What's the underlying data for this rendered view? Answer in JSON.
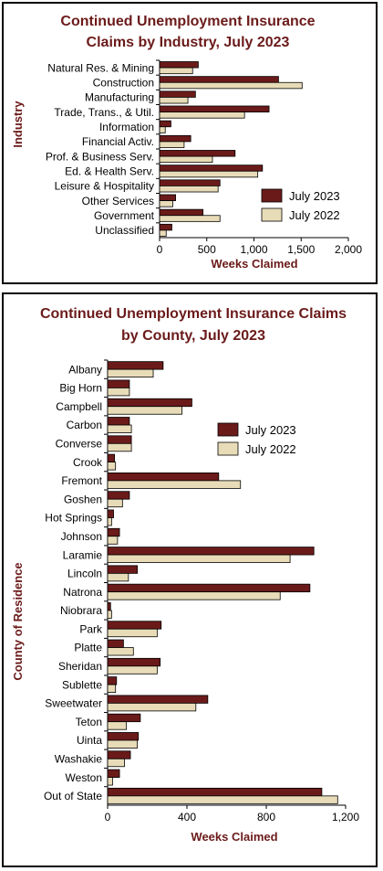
{
  "chart_data": [
    {
      "type": "bar",
      "orientation": "horizontal",
      "title_lines": [
        "Continued Unemployment Insurance",
        "Claims by Industry, July 2023"
      ],
      "ylabel": "Industry",
      "xlabel": "Weeks Claimed",
      "xlim": [
        0,
        2000
      ],
      "xticks": [
        0,
        500,
        1000,
        1500,
        2000
      ],
      "xtick_labels": [
        "0",
        "500",
        "1,000",
        "1,500",
        "2,000"
      ],
      "legend_position": "bottom-right",
      "categories": [
        "Natural Res. & Mining",
        "Construction",
        "Manufacturing",
        "Trade, Trans., & Util.",
        "Information",
        "Financial Activ.",
        "Prof. & Business Serv.",
        "Ed. & Health Serv.",
        "Leisure & Hospitality",
        "Other Services",
        "Government",
        "Unclassified"
      ],
      "series": [
        {
          "name": "July 2023",
          "color": "#6b1a1a",
          "values": [
            410,
            1260,
            380,
            1160,
            120,
            330,
            800,
            1090,
            640,
            170,
            460,
            130
          ]
        },
        {
          "name": "July 2022",
          "color": "#e8dcb8",
          "values": [
            350,
            1510,
            300,
            900,
            60,
            260,
            560,
            1040,
            620,
            140,
            640,
            70
          ]
        }
      ]
    },
    {
      "type": "bar",
      "orientation": "horizontal",
      "title_lines": [
        "Continued Unemployment Insurance Claims",
        "by County, July 2023"
      ],
      "ylabel": "County of Residence",
      "xlabel": "Weeks Claimed",
      "xlim": [
        0,
        1200
      ],
      "xticks": [
        0,
        400,
        800,
        1200
      ],
      "xtick_labels": [
        "0",
        "400",
        "800",
        "1,200"
      ],
      "legend_position": "top-right",
      "categories": [
        "Albany",
        "Big Horn",
        "Campbell",
        "Carbon",
        "Converse",
        "Crook",
        "Fremont",
        "Goshen",
        "Hot Springs",
        "Johnson",
        "Laramie",
        "Lincoln",
        "Natrona",
        "Niobrara",
        "Park",
        "Platte",
        "Sheridan",
        "Sublette",
        "Sweetwater",
        "Teton",
        "Uinta",
        "Washakie",
        "Weston",
        "Out of State"
      ],
      "series": [
        {
          "name": "July 2023",
          "color": "#6b1a1a",
          "values": [
            280,
            110,
            425,
            110,
            120,
            35,
            560,
            110,
            30,
            60,
            1040,
            150,
            1020,
            15,
            270,
            80,
            265,
            45,
            505,
            165,
            155,
            115,
            60,
            1080
          ]
        },
        {
          "name": "July 2022",
          "color": "#e8dcb8",
          "values": [
            230,
            110,
            375,
            120,
            120,
            40,
            670,
            75,
            20,
            50,
            920,
            105,
            870,
            20,
            250,
            130,
            250,
            40,
            445,
            95,
            150,
            85,
            25,
            1160
          ]
        }
      ]
    }
  ]
}
